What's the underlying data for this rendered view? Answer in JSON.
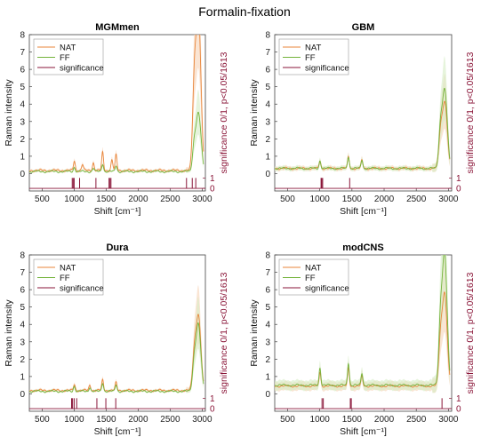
{
  "figure_title": "Formalin-fixation",
  "colors": {
    "NAT": "#e8853a",
    "FF": "#73b33b",
    "significance": "#8a1538",
    "NAT_band": "#f6d3b8",
    "FF_band": "#d6ecc4"
  },
  "chart_data": [
    {
      "type": "line",
      "title": "MGMmen",
      "xlabel": "Shift [cm⁻¹]",
      "ylabel": "Raman intensity",
      "y2label": "significance 0/1, p<0.05/1613",
      "xlim": [
        300,
        3050
      ],
      "ylim": [
        -1,
        8
      ],
      "xticks": [
        500,
        1000,
        1500,
        2000,
        2500,
        3000
      ],
      "yticks": [
        0,
        1,
        2,
        3,
        4,
        5,
        6,
        7,
        8
      ],
      "y2ticks": [
        0,
        1
      ],
      "legend": {
        "position": "top-left",
        "entries": [
          "NAT",
          "FF",
          "significance"
        ]
      },
      "series": [
        {
          "name": "NAT",
          "peaks": [
            [
              1003,
              0.55
            ],
            [
              1130,
              0.35
            ],
            [
              1300,
              0.45
            ],
            [
              1445,
              1.05
            ],
            [
              1590,
              0.6
            ],
            [
              1655,
              0.9
            ],
            [
              2880,
              5.5
            ],
            [
              2935,
              7.3
            ],
            [
              2975,
              3.5
            ]
          ],
          "baseline": 0.18,
          "spread": 0.08
        },
        {
          "name": "FF",
          "peaks": [
            [
              1003,
              0.25
            ],
            [
              1300,
              0.2
            ],
            [
              1445,
              0.45
            ],
            [
              1655,
              0.35
            ],
            [
              2880,
              1.8
            ],
            [
              2935,
              2.6
            ],
            [
              2975,
              1.4
            ]
          ],
          "baseline": 0.12,
          "spread": 0.05
        },
        {
          "name": "significance",
          "x": [
            970,
            985,
            1000,
            1085,
            1340,
            1545,
            1560,
            1575,
            2755,
            2845,
            2900
          ],
          "values": [
            1,
            1,
            1,
            1,
            1,
            1,
            1,
            1,
            1,
            1,
            1
          ]
        }
      ]
    },
    {
      "type": "line",
      "title": "GBM",
      "xlabel": "Shift [cm⁻¹]",
      "ylabel": "Raman intensity",
      "y2label": "significance 0/1, p<0.05/1613",
      "xlim": [
        300,
        3050
      ],
      "ylim": [
        -1,
        8
      ],
      "xticks": [
        500,
        1000,
        1500,
        2000,
        2500,
        3000
      ],
      "yticks": [
        0,
        1,
        2,
        3,
        4,
        5,
        6,
        7,
        8
      ],
      "y2ticks": [
        0,
        1
      ],
      "legend": {
        "position": "top-left",
        "entries": [
          "NAT",
          "FF",
          "significance"
        ]
      },
      "series": [
        {
          "name": "NAT",
          "peaks": [
            [
              1003,
              0.4
            ],
            [
              1445,
              0.65
            ],
            [
              1655,
              0.45
            ],
            [
              2880,
              2.2
            ],
            [
              2935,
              3.0
            ],
            [
              2975,
              1.6
            ]
          ],
          "baseline": 0.3,
          "spread": 0.12
        },
        {
          "name": "FF",
          "peaks": [
            [
              1003,
              0.45
            ],
            [
              1445,
              0.7
            ],
            [
              1655,
              0.5
            ],
            [
              2880,
              2.6
            ],
            [
              2935,
              3.5
            ],
            [
              2975,
              1.9
            ]
          ],
          "baseline": 0.3,
          "spread": 0.12
        },
        {
          "name": "significance",
          "x": [
            1020,
            1030,
            1045,
            1465
          ],
          "values": [
            1,
            1,
            1,
            1
          ]
        }
      ]
    },
    {
      "type": "line",
      "title": "Dura",
      "xlabel": "Shift [cm⁻¹]",
      "ylabel": "Raman intensity",
      "y2label": "significance 0/1, p<0.05/1613",
      "xlim": [
        300,
        3050
      ],
      "ylim": [
        -1,
        8
      ],
      "xticks": [
        500,
        1000,
        1500,
        2000,
        2500,
        3000
      ],
      "yticks": [
        0,
        1,
        2,
        3,
        4,
        5,
        6,
        7,
        8
      ],
      "y2ticks": [
        0,
        1
      ],
      "legend": {
        "position": "top-left",
        "entries": [
          "NAT",
          "FF",
          "significance"
        ]
      },
      "series": [
        {
          "name": "NAT",
          "peaks": [
            [
              1003,
              0.35
            ],
            [
              1245,
              0.3
            ],
            [
              1445,
              0.6
            ],
            [
              1655,
              0.45
            ],
            [
              2880,
              2.4
            ],
            [
              2935,
              3.5
            ],
            [
              2975,
              1.6
            ]
          ],
          "baseline": 0.2,
          "spread": 0.07
        },
        {
          "name": "FF",
          "peaks": [
            [
              1003,
              0.3
            ],
            [
              1245,
              0.25
            ],
            [
              1445,
              0.5
            ],
            [
              1655,
              0.4
            ],
            [
              2880,
              2.0
            ],
            [
              2935,
              3.1
            ],
            [
              2975,
              1.4
            ]
          ],
          "baseline": 0.15,
          "spread": 0.06
        },
        {
          "name": "significance",
          "x": [
            960,
            975,
            1000,
            1040,
            1355,
            1495,
            1650
          ],
          "values": [
            1,
            1,
            1,
            1,
            1,
            1,
            1
          ]
        }
      ]
    },
    {
      "type": "line",
      "title": "modCNS",
      "xlabel": "Shift [cm⁻¹]",
      "ylabel": "Raman intensity",
      "y2label": "significance 0/1, p<0.05/1613",
      "xlim": [
        300,
        3050
      ],
      "ylim": [
        -1,
        8
      ],
      "xticks": [
        500,
        1000,
        1500,
        2000,
        2500,
        3000
      ],
      "yticks": [
        0,
        1,
        2,
        3,
        4,
        5,
        6,
        7,
        8
      ],
      "y2ticks": [
        0,
        1
      ],
      "legend": {
        "position": "top-left",
        "entries": [
          "NAT",
          "FF",
          "significance"
        ]
      },
      "series": [
        {
          "name": "NAT",
          "peaks": [
            [
              1003,
              0.8
            ],
            [
              1445,
              1.0
            ],
            [
              1655,
              0.55
            ],
            [
              2880,
              3.0
            ],
            [
              2935,
              4.3
            ],
            [
              2975,
              2.0
            ]
          ],
          "baseline": 0.45,
          "spread": 0.25
        },
        {
          "name": "FF",
          "peaks": [
            [
              1003,
              1.0
            ],
            [
              1445,
              1.3
            ],
            [
              1655,
              0.7
            ],
            [
              2880,
              4.2
            ],
            [
              2935,
              6.1
            ],
            [
              2975,
              2.8
            ]
          ],
          "baseline": 0.5,
          "spread": 0.28
        },
        {
          "name": "significance",
          "x": [
            1035,
            1055,
            1475,
            1490,
            2900
          ],
          "values": [
            1,
            1,
            1,
            1,
            1
          ]
        }
      ]
    }
  ]
}
